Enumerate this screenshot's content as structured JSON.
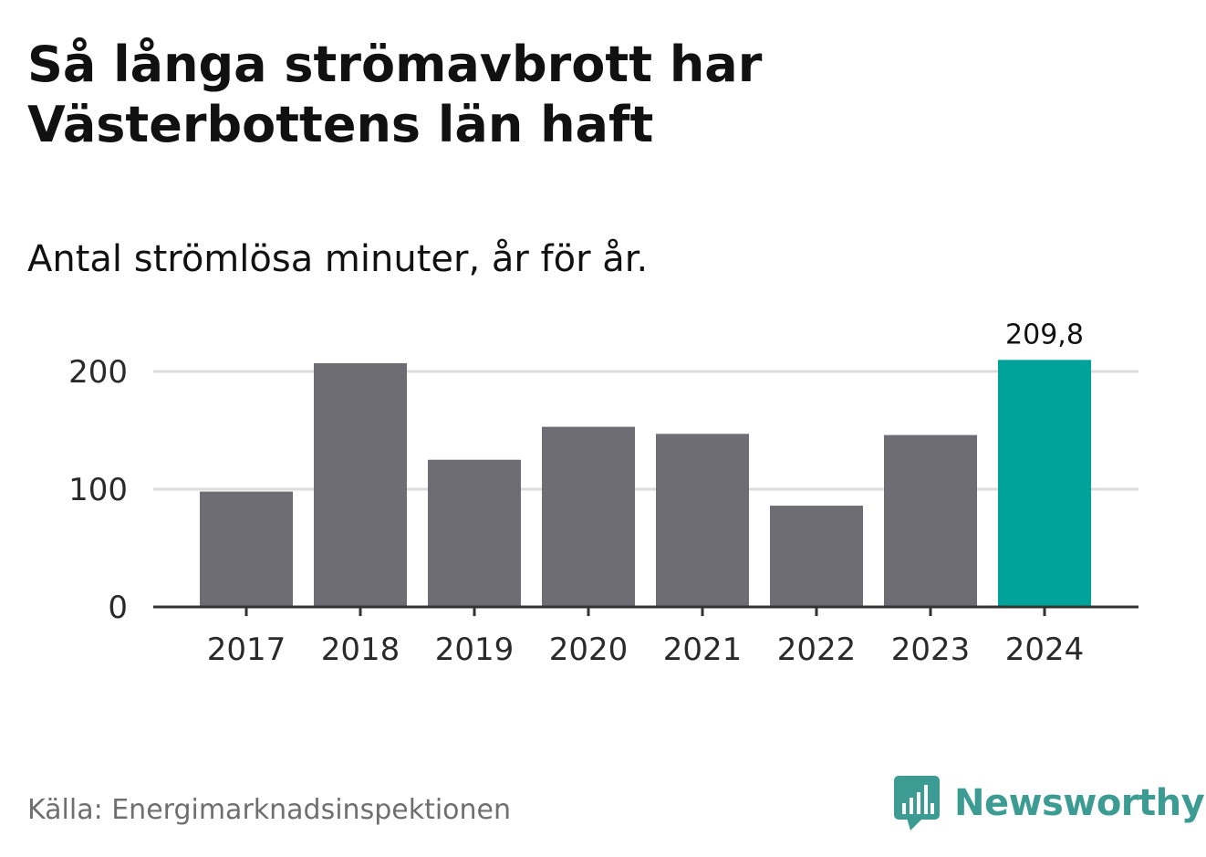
{
  "title": "Så långa strömavbrott har Västerbottens län haft",
  "subtitle": "Antal strömlösa minuter, år för år.",
  "source": "Källa: Energimarknadsinspektionen",
  "brand": {
    "name": "Newsworthy",
    "logo_icon": "newsworthy-chart-bubble-icon",
    "color": "#3c9c93"
  },
  "colors": {
    "bar": "#6e6d73",
    "highlight": "#00a39a",
    "grid": "#dcdcdc",
    "axis": "#333333",
    "text": "#1a1a1a"
  },
  "chart_data": {
    "type": "bar",
    "title": "Så långa strömavbrott har Västerbottens län haft",
    "subtitle": "Antal strömlösa minuter, år för år.",
    "xlabel": "",
    "ylabel": "",
    "categories": [
      "2017",
      "2018",
      "2019",
      "2020",
      "2021",
      "2022",
      "2023",
      "2024"
    ],
    "values": [
      98,
      207,
      125,
      153,
      147,
      86,
      146,
      209.8
    ],
    "highlight_index": 7,
    "data_labels": [
      {
        "index": 7,
        "text": "209,8"
      }
    ],
    "yticks": [
      0,
      100,
      200
    ],
    "ytick_labels": [
      "0",
      "100",
      "200"
    ],
    "ylim": [
      0,
      210
    ],
    "grid": true,
    "legend": "none"
  }
}
